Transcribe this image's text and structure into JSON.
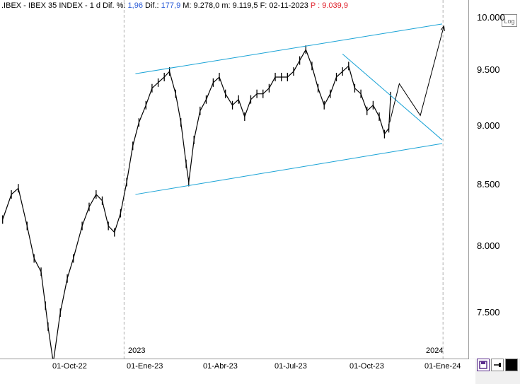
{
  "header": {
    "symbol": ".IBEX - IBEX 35 INDEX - ",
    "period": "1 d",
    "dif_pct_label": "Dif. %:",
    "dif_pct": "1,96",
    "dif_label": "Dif.:",
    "dif": "177,9",
    "max_label": "M:",
    "max": "9.278,0",
    "min_label": "m:",
    "min": "9.119,5",
    "date_label": "F:",
    "date": "02-11-2023",
    "price_label": "P :",
    "price": "9.039,9"
  },
  "log_button": "Log",
  "colors": {
    "channel": "#1aa3d6",
    "candles": "#000000",
    "price": "#e0202a",
    "change": "#2a5bd7"
  },
  "chart_data": {
    "type": "line",
    "x_ticks": [
      "01-Oct-22",
      "01-Ene-23",
      "01-Abr-23",
      "01-Jul-23",
      "01-Oct-23",
      "01-Ene-24"
    ],
    "year_labels": [
      "2023",
      "2024"
    ],
    "y_ticks": [
      "10.000",
      "9.500",
      "9.000",
      "8.500",
      "8.000",
      "7.500"
    ],
    "ylim": [
      7150,
      10050
    ],
    "xlim": [
      "2022-08-12",
      "2024-01-30"
    ],
    "series": [
      {
        "x": [
          "2022-08-15",
          "2022-08-25",
          "2022-09-02",
          "2022-09-12",
          "2022-09-20",
          "2022-09-28",
          "2022-10-03",
          "2022-10-06",
          "2022-10-12",
          "2022-10-20",
          "2022-10-28",
          "2022-11-04",
          "2022-11-14",
          "2022-11-22",
          "2022-11-30",
          "2022-12-07",
          "2022-12-14",
          "2022-12-21",
          "2022-12-28",
          "2023-01-04",
          "2023-01-11",
          "2023-01-18",
          "2023-01-26",
          "2023-02-02",
          "2023-02-09",
          "2023-02-16",
          "2023-02-22",
          "2023-03-01",
          "2023-03-07",
          "2023-03-13",
          "2023-03-16",
          "2023-03-22",
          "2023-03-29",
          "2023-04-05",
          "2023-04-13",
          "2023-04-20",
          "2023-04-27",
          "2023-05-05",
          "2023-05-12",
          "2023-05-19",
          "2023-05-26",
          "2023-06-02",
          "2023-06-09",
          "2023-06-16",
          "2023-06-23",
          "2023-06-30",
          "2023-07-07",
          "2023-07-14",
          "2023-07-21",
          "2023-07-28",
          "2023-08-04",
          "2023-08-11",
          "2023-08-18",
          "2023-08-25",
          "2023-09-01",
          "2023-09-08",
          "2023-09-15",
          "2023-09-22",
          "2023-09-29",
          "2023-10-06",
          "2023-10-13",
          "2023-10-20",
          "2023-10-26",
          "2023-10-31",
          "2023-11-02"
        ],
        "values": [
          8250,
          8450,
          8500,
          8200,
          7950,
          7850,
          7600,
          7450,
          7200,
          7550,
          7800,
          7950,
          8200,
          8350,
          8450,
          8400,
          8200,
          8150,
          8300,
          8550,
          8850,
          9050,
          9200,
          9350,
          9400,
          9450,
          9500,
          9300,
          9050,
          8700,
          8550,
          8900,
          9150,
          9250,
          9400,
          9450,
          9300,
          9200,
          9250,
          9100,
          9250,
          9300,
          9300,
          9350,
          9450,
          9450,
          9450,
          9500,
          9600,
          9700,
          9550,
          9350,
          9200,
          9300,
          9450,
          9500,
          9550,
          9350,
          9300,
          9150,
          9200,
          9100,
          8950,
          9000,
          9280
        ]
      }
    ],
    "annotations": {
      "channel_upper": {
        "x": [
          "2023-01-14",
          "2023-12-31"
        ],
        "y": [
          9480,
          9940
        ]
      },
      "channel_lower": {
        "x": [
          "2023-01-14",
          "2023-12-31"
        ],
        "y": [
          8450,
          8870
        ]
      },
      "downtrend": {
        "x": [
          "2023-09-08",
          "2023-12-31"
        ],
        "y": [
          9660,
          8900
        ]
      },
      "projection": {
        "x": [
          "2023-11-01",
          "2023-11-12",
          "2023-12-06",
          "2024-01-02"
        ],
        "y": [
          9050,
          9390,
          9110,
          9920
        ]
      }
    }
  }
}
